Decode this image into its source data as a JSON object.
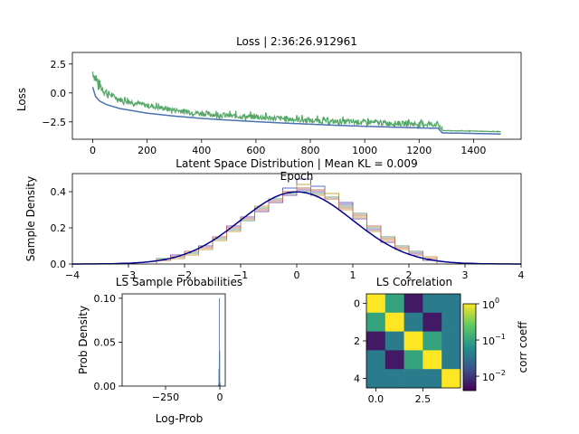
{
  "chart_data": [
    {
      "type": "line",
      "title": "Loss | 2:36:26.912961",
      "xlabel": "Epoch",
      "ylabel": "Loss",
      "xlim": [
        -75,
        1575
      ],
      "ylim": [
        -4.0,
        3.5
      ],
      "xticks": [
        0,
        200,
        400,
        600,
        800,
        1000,
        1200,
        1400
      ],
      "yticks": [
        2.5,
        0.0,
        -2.5
      ],
      "ytick_labels": [
        "2.5",
        "0.0",
        "−2.5"
      ],
      "grid": false,
      "series": [
        {
          "x": [
            0,
            10,
            25,
            50,
            100,
            200,
            300,
            400,
            500,
            600,
            700,
            800,
            900,
            1000,
            1100,
            1200,
            1270,
            1285,
            1400,
            1500
          ],
          "y": [
            0.5,
            -0.3,
            -0.7,
            -1.0,
            -1.35,
            -1.75,
            -2.0,
            -2.2,
            -2.35,
            -2.48,
            -2.6,
            -2.7,
            -2.8,
            -2.88,
            -2.95,
            -3.02,
            -3.05,
            -3.45,
            -3.5,
            -3.55
          ],
          "color": "#4c72b0"
        },
        {
          "x": [
            0,
            10,
            25,
            50,
            100,
            200,
            300,
            400,
            500,
            600,
            700,
            800,
            900,
            1000,
            1100,
            1200,
            1270,
            1285,
            1400,
            1500
          ],
          "y": [
            1.8,
            1.2,
            0.6,
            0.0,
            -0.6,
            -1.1,
            -1.5,
            -1.8,
            -2.0,
            -2.1,
            -2.25,
            -2.4,
            -2.5,
            -2.55,
            -2.65,
            -2.7,
            -2.75,
            -3.25,
            -3.3,
            -3.35
          ],
          "color": "#55a868",
          "noisy": true
        }
      ]
    },
    {
      "type": "line",
      "title": "Latent Space Distribution | Mean KL = 0.009",
      "xlabel": "",
      "ylabel": "Sample Density",
      "xlim": [
        -4,
        4
      ],
      "ylim": [
        0,
        0.5
      ],
      "xticks": [
        -4,
        -3,
        -2,
        -1,
        0,
        1,
        2,
        3,
        4
      ],
      "xtick_labels": [
        "−4",
        "−3",
        "−2",
        "−1",
        "0",
        "1",
        "2",
        "3",
        "4"
      ],
      "yticks": [
        0.0,
        0.2,
        0.4
      ],
      "ytick_labels": [
        "0.0",
        "0.2",
        "0.4"
      ],
      "grid": false,
      "reference": {
        "kind": "standard-normal-pdf",
        "color": "#00008b"
      },
      "series": [
        {
          "kind": "step-histogram",
          "color": "#5b6bd0",
          "bin_edges": [
            -2.5,
            -2.25,
            -2.0,
            -1.75,
            -1.5,
            -1.25,
            -1.0,
            -0.75,
            -0.5,
            -0.25,
            0.0,
            0.25,
            0.5,
            0.75,
            1.0,
            1.25,
            1.5,
            1.75,
            2.0,
            2.25,
            2.5
          ],
          "values": [
            0.02,
            0.04,
            0.06,
            0.1,
            0.15,
            0.2,
            0.25,
            0.3,
            0.36,
            0.42,
            0.47,
            0.43,
            0.39,
            0.34,
            0.27,
            0.2,
            0.14,
            0.1,
            0.06,
            0.03
          ]
        },
        {
          "kind": "step-histogram",
          "color": "#c9a34a",
          "bin_edges": [
            -2.5,
            -2.25,
            -2.0,
            -1.75,
            -1.5,
            -1.25,
            -1.0,
            -0.75,
            -0.5,
            -0.25,
            0.0,
            0.25,
            0.5,
            0.75,
            1.0,
            1.25,
            1.5,
            1.75,
            2.0,
            2.25,
            2.5
          ],
          "values": [
            0.03,
            0.03,
            0.05,
            0.08,
            0.13,
            0.18,
            0.24,
            0.32,
            0.35,
            0.39,
            0.44,
            0.38,
            0.39,
            0.3,
            0.26,
            0.18,
            0.13,
            0.08,
            0.05,
            0.04
          ]
        },
        {
          "kind": "step-histogram",
          "color": "#8a5fb0",
          "bin_edges": [
            -2.5,
            -2.25,
            -2.0,
            -1.75,
            -1.5,
            -1.25,
            -1.0,
            -0.75,
            -0.5,
            -0.25,
            0.0,
            0.25,
            0.5,
            0.75,
            1.0,
            1.25,
            1.5,
            1.75,
            2.0,
            2.25,
            2.5
          ],
          "values": [
            0.02,
            0.05,
            0.07,
            0.1,
            0.14,
            0.21,
            0.26,
            0.29,
            0.34,
            0.38,
            0.41,
            0.4,
            0.36,
            0.33,
            0.25,
            0.19,
            0.12,
            0.09,
            0.06,
            0.02
          ]
        },
        {
          "kind": "step-histogram",
          "color": "#6aa082",
          "bin_edges": [
            -2.5,
            -2.25,
            -2.0,
            -1.75,
            -1.5,
            -1.25,
            -1.0,
            -0.75,
            -0.5,
            -0.25,
            0.0,
            0.25,
            0.5,
            0.75,
            1.0,
            1.25,
            1.5,
            1.75,
            2.0,
            2.25,
            2.5
          ],
          "values": [
            0.03,
            0.04,
            0.06,
            0.09,
            0.14,
            0.19,
            0.24,
            0.31,
            0.36,
            0.39,
            0.4,
            0.39,
            0.37,
            0.32,
            0.28,
            0.2,
            0.15,
            0.1,
            0.07,
            0.03
          ]
        },
        {
          "kind": "step-histogram",
          "color": "#c4735a",
          "bin_edges": [
            -2.5,
            -2.25,
            -2.0,
            -1.75,
            -1.5,
            -1.25,
            -1.0,
            -0.75,
            -0.5,
            -0.25,
            0.0,
            0.25,
            0.5,
            0.75,
            1.0,
            1.25,
            1.5,
            1.75,
            2.0,
            2.25,
            2.5
          ],
          "values": [
            0.02,
            0.04,
            0.07,
            0.09,
            0.15,
            0.2,
            0.25,
            0.3,
            0.35,
            0.4,
            0.42,
            0.41,
            0.36,
            0.31,
            0.27,
            0.21,
            0.14,
            0.09,
            0.05,
            0.03
          ]
        }
      ]
    },
    {
      "type": "bar",
      "title": "LS Sample Probabilities",
      "xlabel": "Log-Prob",
      "ylabel": "Prob Density",
      "xlim": [
        -450,
        25
      ],
      "ylim": [
        0,
        0.105
      ],
      "xticks": [
        -250,
        0
      ],
      "xtick_labels": [
        "−250",
        "0"
      ],
      "yticks": [
        0.0,
        0.05,
        0.1
      ],
      "ytick_labels": [
        "0.00",
        "0.05",
        "0.10"
      ],
      "color": "#4c72b0",
      "bin_edges": [
        -8,
        -6,
        -4,
        -2,
        0,
        2
      ],
      "values": [
        0.002,
        0.02,
        0.1,
        0.04,
        0.004
      ]
    },
    {
      "type": "heatmap",
      "title": "LS Correlation",
      "xticks": [
        0.0,
        2.5
      ],
      "xtick_labels": [
        "0.0",
        "2.5"
      ],
      "yticks": [
        0,
        2,
        4
      ],
      "ytick_labels": [
        "0",
        "2",
        "4"
      ],
      "matrix": [
        [
          1.0,
          0.1,
          0.006,
          0.04,
          0.04
        ],
        [
          0.1,
          1.0,
          0.04,
          0.006,
          0.04
        ],
        [
          0.006,
          0.04,
          1.0,
          0.1,
          0.04
        ],
        [
          0.04,
          0.006,
          0.1,
          1.0,
          0.04
        ],
        [
          0.04,
          0.04,
          0.04,
          0.04,
          1.0
        ]
      ],
      "colorbar": {
        "label": "corr coeff",
        "scale": "log",
        "range": [
          0.004,
          1.0
        ],
        "ticks": [
          1.0,
          0.1,
          0.01
        ],
        "tick_labels": [
          {
            "base": "10",
            "exp": "0"
          },
          {
            "base": "10",
            "exp": "−1"
          },
          {
            "base": "10",
            "exp": "−2"
          }
        ]
      },
      "colormap": "viridis"
    }
  ]
}
